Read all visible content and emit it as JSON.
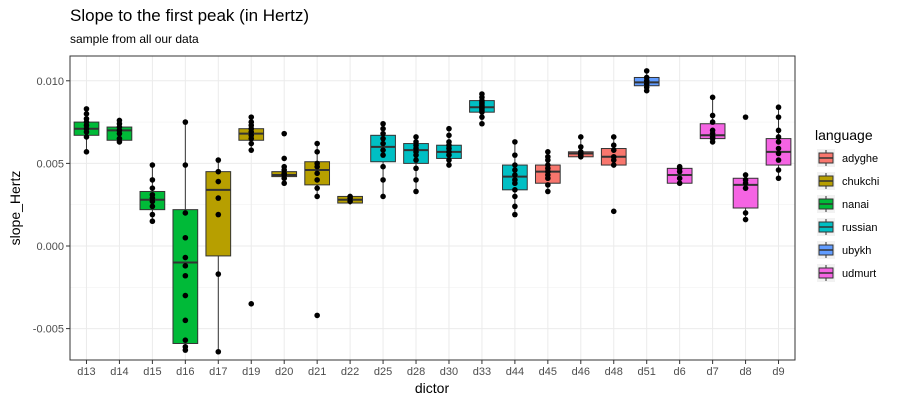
{
  "chart_data": {
    "type": "boxplot",
    "title": "Slope to the first peak (in Hertz)",
    "subtitle": "sample from all our data",
    "xlabel": "dictor",
    "ylabel": "slope_Hertz",
    "ylim": [
      -0.0069,
      0.0115
    ],
    "yticks": [
      -0.005,
      0.0,
      0.005,
      0.01
    ],
    "ytick_labels": [
      "-0.005",
      "0.000",
      "0.005",
      "0.010"
    ],
    "grid": true,
    "legend": {
      "title": "language",
      "position": "right",
      "items": [
        {
          "name": "adyghe",
          "color": "#F8766D"
        },
        {
          "name": "chukchi",
          "color": "#B79F00"
        },
        {
          "name": "nanai",
          "color": "#00BA38"
        },
        {
          "name": "russian",
          "color": "#00BFC4"
        },
        {
          "name": "ubykh",
          "color": "#619CFF"
        },
        {
          "name": "udmurt",
          "color": "#F564E3"
        }
      ]
    },
    "categories": [
      {
        "label": "d13",
        "group": "nanai",
        "q1": 0.0067,
        "median": 0.0071,
        "q3": 0.0075,
        "low": 0.0057,
        "high": 0.0083,
        "points": [
          0.0057,
          0.0066,
          0.0069,
          0.0071,
          0.0073,
          0.0075,
          0.0077,
          0.008,
          0.0083
        ]
      },
      {
        "label": "d14",
        "group": "nanai",
        "q1": 0.0064,
        "median": 0.007,
        "q3": 0.0072,
        "low": 0.0063,
        "high": 0.0076,
        "points": [
          0.0063,
          0.0065,
          0.0068,
          0.007,
          0.0072,
          0.0074,
          0.0076
        ]
      },
      {
        "label": "d15",
        "group": "nanai",
        "q1": 0.0022,
        "median": 0.0028,
        "q3": 0.0033,
        "low": 0.0015,
        "high": 0.0049,
        "points": [
          0.0015,
          0.0019,
          0.0024,
          0.0027,
          0.0029,
          0.0031,
          0.0035,
          0.004,
          0.0049
        ]
      },
      {
        "label": "d16",
        "group": "nanai",
        "q1": -0.0059,
        "median": -0.001,
        "q3": 0.0022,
        "low": -0.0063,
        "high": 0.0075,
        "points": [
          -0.0063,
          -0.0061,
          -0.0057,
          -0.0045,
          -0.003,
          -0.0018,
          -0.0012,
          -0.0007,
          0.0005,
          0.002,
          0.0049,
          0.0075
        ]
      },
      {
        "label": "d17",
        "group": "chukchi",
        "q1": -0.0006,
        "median": 0.0034,
        "q3": 0.0045,
        "low": -0.0064,
        "high": 0.0052,
        "points": [
          -0.0064,
          -0.0017,
          0.0019,
          0.0029,
          0.0039,
          0.0045,
          0.0052
        ]
      },
      {
        "label": "d19",
        "group": "chukchi",
        "q1": 0.0064,
        "median": 0.0068,
        "q3": 0.0071,
        "low": 0.0058,
        "high": 0.0078,
        "points": [
          -0.0035,
          0.0058,
          0.0062,
          0.0065,
          0.0067,
          0.0069,
          0.0071,
          0.0073,
          0.0075,
          0.0078
        ]
      },
      {
        "label": "d20",
        "group": "chukchi",
        "q1": 0.0042,
        "median": 0.0043,
        "q3": 0.0045,
        "low": 0.0038,
        "high": 0.0048,
        "points": [
          0.0038,
          0.0041,
          0.0043,
          0.0044,
          0.0046,
          0.0048,
          0.0053,
          0.0068
        ]
      },
      {
        "label": "d21",
        "group": "chukchi",
        "q1": 0.0037,
        "median": 0.0046,
        "q3": 0.0051,
        "low": 0.003,
        "high": 0.0062,
        "points": [
          -0.0042,
          0.003,
          0.0035,
          0.004,
          0.0044,
          0.0048,
          0.005,
          0.0057,
          0.0062
        ]
      },
      {
        "label": "d22",
        "group": "chukchi",
        "q1": 0.0026,
        "median": 0.0028,
        "q3": 0.003,
        "low": 0.0025,
        "high": 0.0031,
        "points": [
          0.0027,
          0.0029,
          0.003
        ]
      },
      {
        "label": "d25",
        "group": "russian",
        "q1": 0.0051,
        "median": 0.006,
        "q3": 0.0067,
        "low": 0.003,
        "high": 0.0074,
        "points": [
          0.003,
          0.004,
          0.0048,
          0.0055,
          0.0058,
          0.0062,
          0.0065,
          0.0068,
          0.0071,
          0.0074
        ]
      },
      {
        "label": "d28",
        "group": "russian",
        "q1": 0.005,
        "median": 0.0058,
        "q3": 0.0062,
        "low": 0.0033,
        "high": 0.0066,
        "points": [
          0.0033,
          0.004,
          0.0047,
          0.0052,
          0.0055,
          0.0057,
          0.0059,
          0.0061,
          0.0063,
          0.0066
        ]
      },
      {
        "label": "d30",
        "group": "russian",
        "q1": 0.0053,
        "median": 0.0057,
        "q3": 0.0061,
        "low": 0.0049,
        "high": 0.0071,
        "points": [
          0.0049,
          0.0052,
          0.0055,
          0.0057,
          0.0059,
          0.0061,
          0.0063,
          0.0067,
          0.0071
        ]
      },
      {
        "label": "d33",
        "group": "russian",
        "q1": 0.0081,
        "median": 0.0084,
        "q3": 0.0088,
        "low": 0.0074,
        "high": 0.0092,
        "points": [
          0.0074,
          0.0078,
          0.0081,
          0.0082,
          0.0083,
          0.0084,
          0.0085,
          0.0086,
          0.0087,
          0.0088,
          0.009,
          0.0092
        ]
      },
      {
        "label": "d44",
        "group": "russian",
        "q1": 0.0034,
        "median": 0.0042,
        "q3": 0.0049,
        "low": 0.0019,
        "high": 0.0063,
        "points": [
          0.0019,
          0.0024,
          0.003,
          0.0034,
          0.0038,
          0.004,
          0.0043,
          0.0046,
          0.0049,
          0.0055,
          0.0063
        ]
      },
      {
        "label": "d45",
        "group": "adyghe",
        "q1": 0.0038,
        "median": 0.0045,
        "q3": 0.0049,
        "low": 0.0033,
        "high": 0.0057,
        "points": [
          0.0033,
          0.0037,
          0.0041,
          0.0043,
          0.0045,
          0.0047,
          0.0049,
          0.0052,
          0.0054,
          0.0057
        ]
      },
      {
        "label": "d46",
        "group": "adyghe",
        "q1": 0.0054,
        "median": 0.0056,
        "q3": 0.0057,
        "low": 0.0053,
        "high": 0.0066,
        "points": [
          0.0054,
          0.0055,
          0.0056,
          0.0057,
          0.006,
          0.0066
        ]
      },
      {
        "label": "d48",
        "group": "adyghe",
        "q1": 0.0049,
        "median": 0.0054,
        "q3": 0.0059,
        "low": 0.0049,
        "high": 0.0066,
        "points": [
          0.0021,
          0.0049,
          0.0052,
          0.0054,
          0.0058,
          0.0061,
          0.0066
        ]
      },
      {
        "label": "d51",
        "group": "ubykh",
        "q1": 0.0097,
        "median": 0.0099,
        "q3": 0.0102,
        "low": 0.0094,
        "high": 0.0106,
        "points": [
          0.0094,
          0.0096,
          0.0098,
          0.01,
          0.0102,
          0.0106
        ]
      },
      {
        "label": "d6",
        "group": "udmurt",
        "q1": 0.0038,
        "median": 0.0043,
        "q3": 0.0047,
        "low": 0.0038,
        "high": 0.0048,
        "points": [
          0.0038,
          0.0041,
          0.0045,
          0.0047,
          0.0048
        ]
      },
      {
        "label": "d7",
        "group": "udmurt",
        "q1": 0.0065,
        "median": 0.0067,
        "q3": 0.0074,
        "low": 0.0063,
        "high": 0.009,
        "points": [
          0.0063,
          0.0065,
          0.0066,
          0.0068,
          0.007,
          0.0075,
          0.0079,
          0.009
        ]
      },
      {
        "label": "d8",
        "group": "udmurt",
        "q1": 0.0023,
        "median": 0.0037,
        "q3": 0.0041,
        "low": 0.0016,
        "high": 0.0043,
        "points": [
          0.0016,
          0.002,
          0.0035,
          0.0038,
          0.004,
          0.0043,
          0.0078
        ]
      },
      {
        "label": "d9",
        "group": "udmurt",
        "q1": 0.0049,
        "median": 0.0057,
        "q3": 0.0065,
        "low": 0.0041,
        "high": 0.0084,
        "points": [
          0.0041,
          0.0046,
          0.0052,
          0.0056,
          0.0059,
          0.0063,
          0.0066,
          0.007,
          0.0078,
          0.0084
        ]
      }
    ]
  }
}
